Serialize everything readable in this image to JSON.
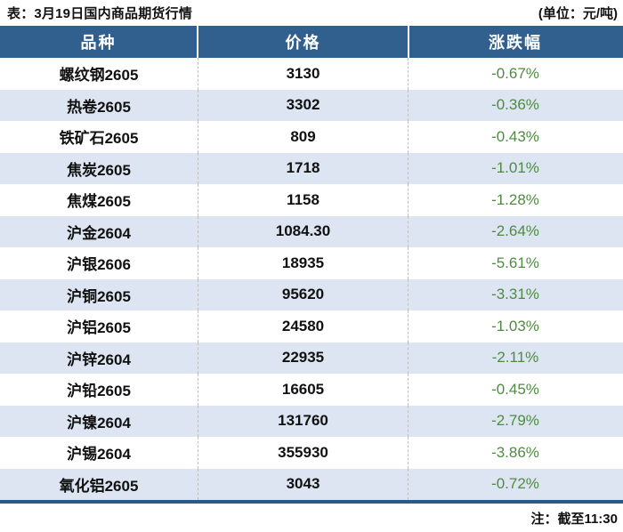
{
  "caption": {
    "title": "表：3月19日国内商品期货行情",
    "unit_note": "(单位：元/吨)"
  },
  "footnote": "注：截至11:30",
  "colors": {
    "header_bg": "#31608E",
    "alt_row_bg": "#DCE5F1",
    "change_text": "#4E8C3F",
    "bottom_rule": "#2B5A8A"
  },
  "chart_data": {
    "type": "table",
    "title": "表：3月19日国内商品期货行情",
    "unit": "元/吨",
    "as_of": "截至11:30",
    "columns": [
      "品种",
      "价格",
      "涨跌幅"
    ],
    "rows": [
      {
        "name": "螺纹钢2605",
        "price": "3130",
        "change": "-0.67%"
      },
      {
        "name": "热卷2605",
        "price": "3302",
        "change": "-0.36%"
      },
      {
        "name": "铁矿石2605",
        "price": "809",
        "change": "-0.43%"
      },
      {
        "name": "焦炭2605",
        "price": "1718",
        "change": "-1.01%"
      },
      {
        "name": "焦煤2605",
        "price": "1158",
        "change": "-1.28%"
      },
      {
        "name": "沪金2604",
        "price": "1084.30",
        "change": "-2.64%"
      },
      {
        "name": "沪银2606",
        "price": "18935",
        "change": "-5.61%"
      },
      {
        "name": "沪铜2605",
        "price": "95620",
        "change": "-3.31%"
      },
      {
        "name": "沪铝2605",
        "price": "24580",
        "change": "-1.03%"
      },
      {
        "name": "沪锌2604",
        "price": "22935",
        "change": "-2.11%"
      },
      {
        "name": "沪铅2605",
        "price": "16605",
        "change": "-0.45%"
      },
      {
        "name": "沪镍2604",
        "price": "131760",
        "change": "-2.79%"
      },
      {
        "name": "沪锡2604",
        "price": "355930",
        "change": "-3.86%"
      },
      {
        "name": "氧化铝2605",
        "price": "3043",
        "change": "-0.72%"
      }
    ]
  }
}
